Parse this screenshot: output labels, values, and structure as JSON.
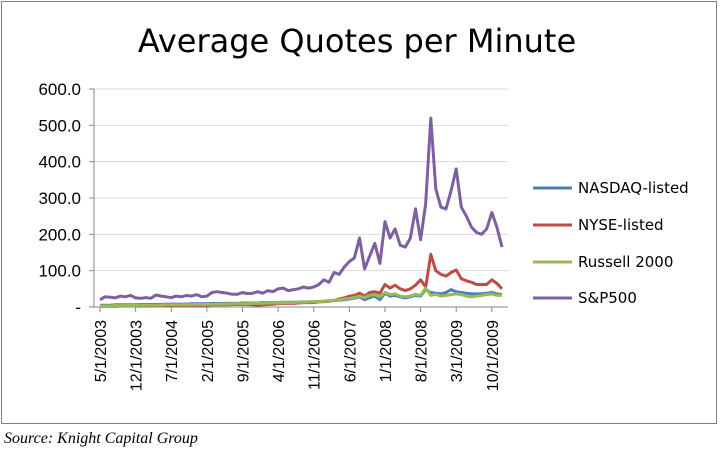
{
  "chart_data": {
    "type": "line",
    "title": "Average Quotes per Minute",
    "xlabel": "",
    "ylabel": "",
    "ylim": [
      0,
      600
    ],
    "yticks": [
      "-",
      "100.0",
      "200.0",
      "300.0",
      "400.0",
      "500.0",
      "600.0"
    ],
    "ytick_values": [
      0,
      100,
      200,
      300,
      400,
      500,
      600
    ],
    "xtick_labels": [
      "5/1/2003",
      "12/1/2003",
      "7/1/2004",
      "2/1/2005",
      "9/1/2005",
      "4/1/2006",
      "11/1/2006",
      "6/1/2007",
      "1/1/2008",
      "8/1/2008",
      "3/1/2009",
      "10/1/2009"
    ],
    "xtick_indices": [
      0,
      7,
      14,
      21,
      28,
      35,
      42,
      49,
      56,
      63,
      70,
      77
    ],
    "grid": "horizontal",
    "legend_position": "right",
    "x": [
      "5/1/2003",
      "6/1/2003",
      "7/1/2003",
      "8/1/2003",
      "9/1/2003",
      "10/1/2003",
      "11/1/2003",
      "12/1/2003",
      "1/1/2004",
      "2/1/2004",
      "3/1/2004",
      "4/1/2004",
      "5/1/2004",
      "6/1/2004",
      "7/1/2004",
      "8/1/2004",
      "9/1/2004",
      "10/1/2004",
      "11/1/2004",
      "12/1/2004",
      "1/1/2005",
      "2/1/2005",
      "3/1/2005",
      "4/1/2005",
      "5/1/2005",
      "6/1/2005",
      "7/1/2005",
      "8/1/2005",
      "9/1/2005",
      "10/1/2005",
      "11/1/2005",
      "12/1/2005",
      "1/1/2006",
      "2/1/2006",
      "3/1/2006",
      "4/1/2006",
      "5/1/2006",
      "6/1/2006",
      "7/1/2006",
      "8/1/2006",
      "9/1/2006",
      "10/1/2006",
      "11/1/2006",
      "12/1/2006",
      "1/1/2007",
      "2/1/2007",
      "3/1/2007",
      "4/1/2007",
      "5/1/2007",
      "6/1/2007",
      "7/1/2007",
      "8/1/2007",
      "9/1/2007",
      "10/1/2007",
      "11/1/2007",
      "12/1/2007",
      "1/1/2008",
      "2/1/2008",
      "3/1/2008",
      "4/1/2008",
      "5/1/2008",
      "6/1/2008",
      "7/1/2008",
      "8/1/2008",
      "9/1/2008",
      "10/1/2008",
      "11/1/2008",
      "12/1/2008",
      "1/1/2009",
      "2/1/2009",
      "3/1/2009",
      "4/1/2009",
      "5/1/2009",
      "6/1/2009",
      "7/1/2009",
      "8/1/2009",
      "9/1/2009",
      "10/1/2009",
      "11/1/2009",
      "12/1/2009"
    ],
    "series": [
      {
        "name": "NASDAQ-listed",
        "color": "#4a7ebb",
        "values": [
          5,
          5,
          5,
          6,
          6,
          6,
          6,
          6,
          7,
          7,
          7,
          7,
          7,
          8,
          8,
          8,
          8,
          8,
          9,
          9,
          9,
          9,
          10,
          10,
          10,
          10,
          10,
          10,
          11,
          11,
          11,
          11,
          12,
          12,
          12,
          12,
          13,
          13,
          13,
          13,
          14,
          14,
          15,
          15,
          16,
          17,
          18,
          19,
          20,
          22,
          24,
          28,
          20,
          26,
          30,
          20,
          38,
          30,
          32,
          28,
          25,
          28,
          32,
          30,
          48,
          40,
          38,
          36,
          40,
          48,
          42,
          40,
          38,
          36,
          36,
          36,
          38,
          40,
          36,
          34
        ]
      },
      {
        "name": "NYSE-listed",
        "color": "#be4b48",
        "values": [
          2,
          2,
          2,
          2,
          3,
          3,
          3,
          3,
          3,
          3,
          3,
          4,
          4,
          4,
          4,
          4,
          4,
          5,
          5,
          5,
          5,
          5,
          6,
          6,
          6,
          6,
          7,
          7,
          7,
          7,
          6,
          5,
          6,
          7,
          8,
          9,
          10,
          10,
          10,
          11,
          12,
          12,
          12,
          14,
          15,
          16,
          18,
          22,
          25,
          30,
          32,
          38,
          30,
          40,
          42,
          38,
          62,
          52,
          60,
          50,
          45,
          50,
          60,
          75,
          55,
          145,
          100,
          90,
          85,
          95,
          102,
          78,
          72,
          68,
          62,
          62,
          62,
          75,
          65,
          50
        ]
      },
      {
        "name": "Russell 2000",
        "color": "#98b954",
        "values": [
          3,
          3,
          3,
          4,
          4,
          4,
          4,
          4,
          5,
          5,
          5,
          5,
          5,
          6,
          6,
          6,
          6,
          6,
          7,
          7,
          7,
          7,
          8,
          8,
          8,
          8,
          9,
          9,
          9,
          9,
          10,
          10,
          10,
          11,
          11,
          11,
          12,
          12,
          12,
          13,
          13,
          14,
          14,
          15,
          16,
          17,
          18,
          20,
          22,
          24,
          26,
          30,
          26,
          32,
          34,
          28,
          40,
          34,
          36,
          30,
          28,
          30,
          35,
          32,
          52,
          32,
          35,
          30,
          32,
          34,
          36,
          34,
          30,
          28,
          30,
          32,
          34,
          36,
          32,
          32
        ]
      },
      {
        "name": "S&P500",
        "color": "#7d60a0",
        "values": [
          20,
          28,
          27,
          25,
          30,
          28,
          32,
          25,
          24,
          26,
          24,
          33,
          30,
          28,
          26,
          30,
          28,
          32,
          30,
          34,
          28,
          30,
          40,
          42,
          40,
          38,
          35,
          35,
          40,
          37,
          38,
          42,
          38,
          45,
          42,
          50,
          52,
          45,
          48,
          50,
          55,
          52,
          55,
          62,
          75,
          68,
          95,
          90,
          110,
          125,
          135,
          190,
          105,
          140,
          175,
          120,
          235,
          190,
          215,
          170,
          165,
          190,
          270,
          185,
          285,
          520,
          325,
          275,
          270,
          320,
          380,
          275,
          250,
          220,
          205,
          200,
          215,
          260,
          220,
          165
        ]
      }
    ]
  },
  "source_note": "Source:  Knight Capital Group"
}
